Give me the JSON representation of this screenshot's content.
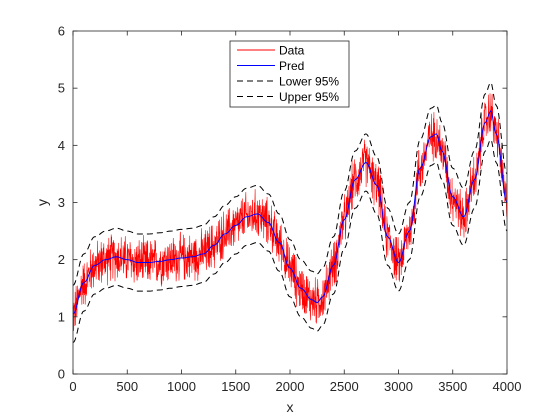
{
  "chart_data": {
    "type": "line",
    "title": "",
    "xlabel": "x",
    "ylabel": "y",
    "xlim": [
      0,
      4000
    ],
    "ylim": [
      0,
      6
    ],
    "xticks": [
      0,
      500,
      1000,
      1500,
      2000,
      2500,
      3000,
      3500,
      4000
    ],
    "yticks": [
      0,
      1,
      2,
      3,
      4,
      5,
      6
    ],
    "grid": false,
    "legend": {
      "placement": "top-center",
      "entries": [
        "Data",
        "Pred",
        "Lower 95%",
        "Upper 95%"
      ]
    },
    "series": [
      {
        "name": "Data",
        "style": "line",
        "color": "#ff0000",
        "noise_amplitude": 0.5,
        "x": [
          0,
          100,
          200,
          300,
          400,
          500,
          600,
          700,
          800,
          900,
          1000,
          1100,
          1200,
          1300,
          1400,
          1500,
          1600,
          1700,
          1800,
          1900,
          2000,
          2100,
          2200,
          2250,
          2300,
          2400,
          2500,
          2600,
          2700,
          2800,
          2900,
          3000,
          3100,
          3200,
          3300,
          3350,
          3400,
          3500,
          3600,
          3700,
          3800,
          3850,
          3900,
          4000
        ],
        "y": [
          1.05,
          1.6,
          1.9,
          2.0,
          2.05,
          2.0,
          1.95,
          1.95,
          1.97,
          2.0,
          2.03,
          2.05,
          2.1,
          2.25,
          2.45,
          2.6,
          2.75,
          2.8,
          2.65,
          2.3,
          1.85,
          1.5,
          1.3,
          1.25,
          1.35,
          1.9,
          2.7,
          3.4,
          3.7,
          3.3,
          2.4,
          1.95,
          2.5,
          3.6,
          4.15,
          4.2,
          3.9,
          3.1,
          2.75,
          3.4,
          4.4,
          4.6,
          4.2,
          3.0
        ]
      },
      {
        "name": "Pred",
        "style": "line",
        "color": "#0000ff",
        "x": [
          0,
          100,
          200,
          300,
          400,
          500,
          600,
          700,
          800,
          900,
          1000,
          1100,
          1200,
          1300,
          1400,
          1500,
          1600,
          1700,
          1800,
          1900,
          2000,
          2100,
          2200,
          2250,
          2300,
          2400,
          2500,
          2600,
          2700,
          2800,
          2900,
          3000,
          3100,
          3200,
          3300,
          3350,
          3400,
          3500,
          3600,
          3700,
          3800,
          3850,
          3900,
          4000
        ],
        "y": [
          1.05,
          1.6,
          1.9,
          2.0,
          2.05,
          2.0,
          1.95,
          1.95,
          1.97,
          2.0,
          2.03,
          2.05,
          2.1,
          2.25,
          2.45,
          2.6,
          2.75,
          2.8,
          2.65,
          2.3,
          1.85,
          1.5,
          1.3,
          1.25,
          1.35,
          1.9,
          2.7,
          3.4,
          3.7,
          3.3,
          2.4,
          1.95,
          2.5,
          3.6,
          4.15,
          4.2,
          3.9,
          3.1,
          2.75,
          3.4,
          4.4,
          4.6,
          4.2,
          3.0
        ]
      },
      {
        "name": "Lower 95%",
        "style": "dashed",
        "color": "#000000",
        "x": [
          0,
          100,
          200,
          300,
          400,
          500,
          600,
          700,
          800,
          900,
          1000,
          1100,
          1200,
          1300,
          1400,
          1500,
          1600,
          1700,
          1800,
          1900,
          2000,
          2100,
          2200,
          2250,
          2300,
          2400,
          2500,
          2600,
          2700,
          2800,
          2900,
          3000,
          3100,
          3200,
          3300,
          3350,
          3400,
          3500,
          3600,
          3700,
          3800,
          3850,
          3900,
          4000
        ],
        "y": [
          0.55,
          1.1,
          1.4,
          1.5,
          1.55,
          1.5,
          1.45,
          1.45,
          1.47,
          1.5,
          1.53,
          1.55,
          1.6,
          1.75,
          1.95,
          2.1,
          2.25,
          2.3,
          2.15,
          1.8,
          1.35,
          1.0,
          0.8,
          0.75,
          0.85,
          1.4,
          2.2,
          2.9,
          3.2,
          2.8,
          1.9,
          1.45,
          2.0,
          3.1,
          3.65,
          3.7,
          3.4,
          2.6,
          2.25,
          2.9,
          3.9,
          4.1,
          3.7,
          2.5
        ]
      },
      {
        "name": "Upper 95%",
        "style": "dashed",
        "color": "#000000",
        "x": [
          0,
          100,
          200,
          300,
          400,
          500,
          600,
          700,
          800,
          900,
          1000,
          1100,
          1200,
          1300,
          1400,
          1500,
          1600,
          1700,
          1800,
          1900,
          2000,
          2100,
          2200,
          2250,
          2300,
          2400,
          2500,
          2600,
          2700,
          2800,
          2900,
          3000,
          3100,
          3200,
          3300,
          3350,
          3400,
          3500,
          3600,
          3700,
          3800,
          3850,
          3900,
          4000
        ],
        "y": [
          1.55,
          2.1,
          2.4,
          2.5,
          2.55,
          2.5,
          2.45,
          2.45,
          2.47,
          2.5,
          2.53,
          2.55,
          2.6,
          2.75,
          2.95,
          3.1,
          3.25,
          3.3,
          3.15,
          2.8,
          2.35,
          2.0,
          1.8,
          1.75,
          1.85,
          2.4,
          3.2,
          3.9,
          4.2,
          3.8,
          2.9,
          2.45,
          3.0,
          4.1,
          4.65,
          4.7,
          4.4,
          3.6,
          3.25,
          3.9,
          4.9,
          5.1,
          4.7,
          3.5
        ]
      }
    ]
  }
}
